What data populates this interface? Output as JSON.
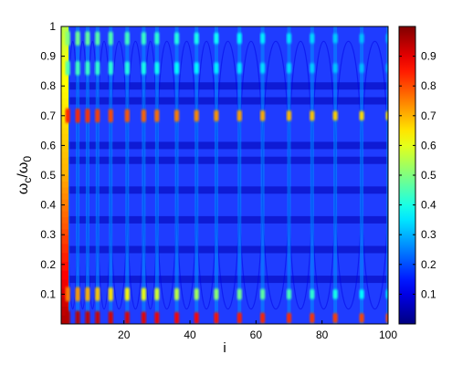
{
  "chart_data": {
    "type": "heatmap",
    "title": "",
    "xlabel": "i",
    "ylabel": "ωc/ω0",
    "ylabel_parts": {
      "base": "ω",
      "sub_num": "c",
      "slash": "/",
      "base2": "ω",
      "sub_den": "0"
    },
    "xlim": [
      1,
      100
    ],
    "ylim": [
      0,
      1
    ],
    "xticks": [
      20,
      40,
      60,
      80,
      100
    ],
    "yticks": [
      0.1,
      0.2,
      0.3,
      0.4,
      0.5,
      0.6,
      0.7,
      0.8,
      0.9,
      1
    ],
    "colorbar": {
      "range": [
        0,
        1
      ],
      "ticks": [
        0.1,
        0.2,
        0.3,
        0.4,
        0.5,
        0.6,
        0.7,
        0.8,
        0.9
      ],
      "colormap": "jet",
      "placement": "right"
    },
    "background_value": 0.15,
    "vertical_bands": {
      "description": "column positions (i) where bright resonance spots appear",
      "positions": [
        3,
        6,
        9,
        12,
        16,
        21,
        26,
        30,
        36,
        42,
        48,
        55,
        62,
        70,
        77,
        84,
        92,
        100
      ],
      "bright_rows": [
        {
          "omega": 0.02,
          "value_start": 0.95,
          "value_end": 0.8
        },
        {
          "omega": 0.1,
          "value_start": 0.75,
          "value_end": 0.35
        },
        {
          "omega": 0.7,
          "value_start": 0.85,
          "value_end": 0.65
        },
        {
          "omega": 0.86,
          "value_start": 0.45,
          "value_end": 0.3
        },
        {
          "omega": 0.96,
          "value_start": 0.5,
          "value_end": 0.3
        }
      ]
    },
    "edge_column": {
      "description": "bright column near i=1",
      "values_at_omega": [
        {
          "omega": 0.0,
          "value": 0.95
        },
        {
          "omega": 0.3,
          "value": 0.8
        },
        {
          "omega": 0.5,
          "value": 0.7
        },
        {
          "omega": 0.7,
          "value": 0.65
        },
        {
          "omega": 0.9,
          "value": 0.6
        },
        {
          "omega": 1.0,
          "value": 0.55
        }
      ]
    },
    "dark_rows": [
      0.15,
      0.25,
      0.35,
      0.45,
      0.55,
      0.6,
      0.75,
      0.8
    ],
    "grid": false
  }
}
